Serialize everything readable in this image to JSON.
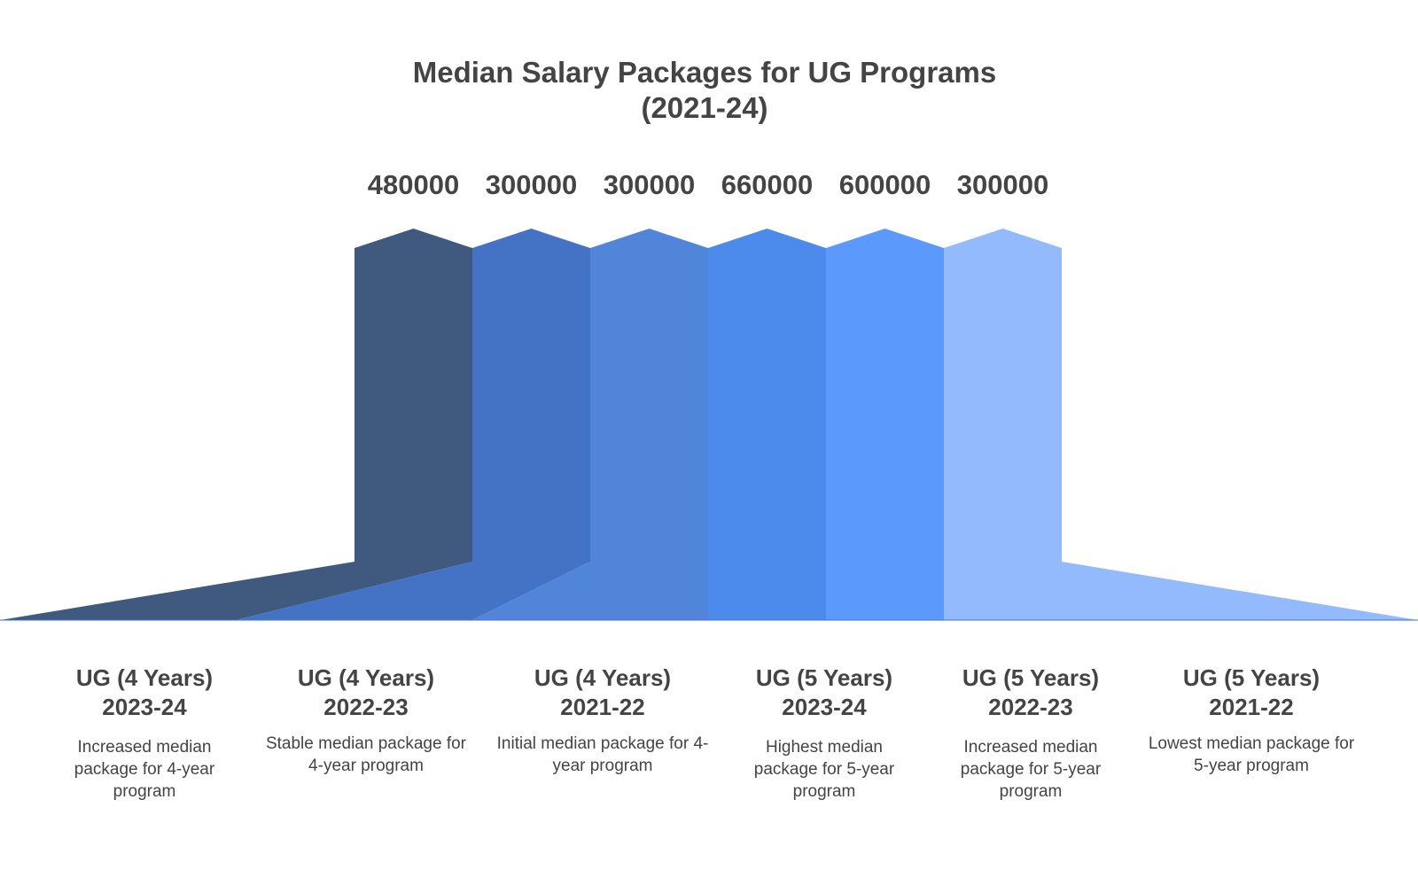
{
  "chart_data": {
    "type": "bar",
    "title": "Median Salary Packages for UG Programs (2021-24)",
    "title_lines": [
      "Median Salary Packages for UG Programs",
      "(2021-24)"
    ],
    "categories": [
      "UG (4 Years) 2023-24",
      "UG (4 Years) 2022-23",
      "UG (4 Years) 2021-22",
      "UG (5 Years) 2023-24",
      "UG (5 Years) 2022-23",
      "UG (5 Years) 2021-22"
    ],
    "values": [
      480000,
      300000,
      300000,
      660000,
      600000,
      300000
    ],
    "value_labels": [
      "480000",
      "300000",
      "300000",
      "660000",
      "600000",
      "300000"
    ],
    "items": [
      {
        "program": "UG (4 Years)",
        "year": "2023-24",
        "description": "Increased median package for 4-year program",
        "color": "#3F5A7E"
      },
      {
        "program": "UG (4 Years)",
        "year": "2022-23",
        "description": "Stable median package for 4-year program",
        "color": "#4472C4"
      },
      {
        "program": "UG (4 Years)",
        "year": "2021-22",
        "description": "Initial median package for 4-year program",
        "color": "#5185DA"
      },
      {
        "program": "UG (5 Years)",
        "year": "2023-24",
        "description": "Highest median package for 5-year program",
        "color": "#4C8AEC"
      },
      {
        "program": "UG (5 Years)",
        "year": "2022-23",
        "description": "Increased median package for 5-year program",
        "color": "#5B99FC"
      },
      {
        "program": "UG (5 Years)",
        "year": "2021-22",
        "description": "Lowest median package for 5-year program",
        "color": "#94BAFE"
      }
    ],
    "xlabel": "",
    "ylabel": "",
    "legend": "none",
    "grid": false
  }
}
